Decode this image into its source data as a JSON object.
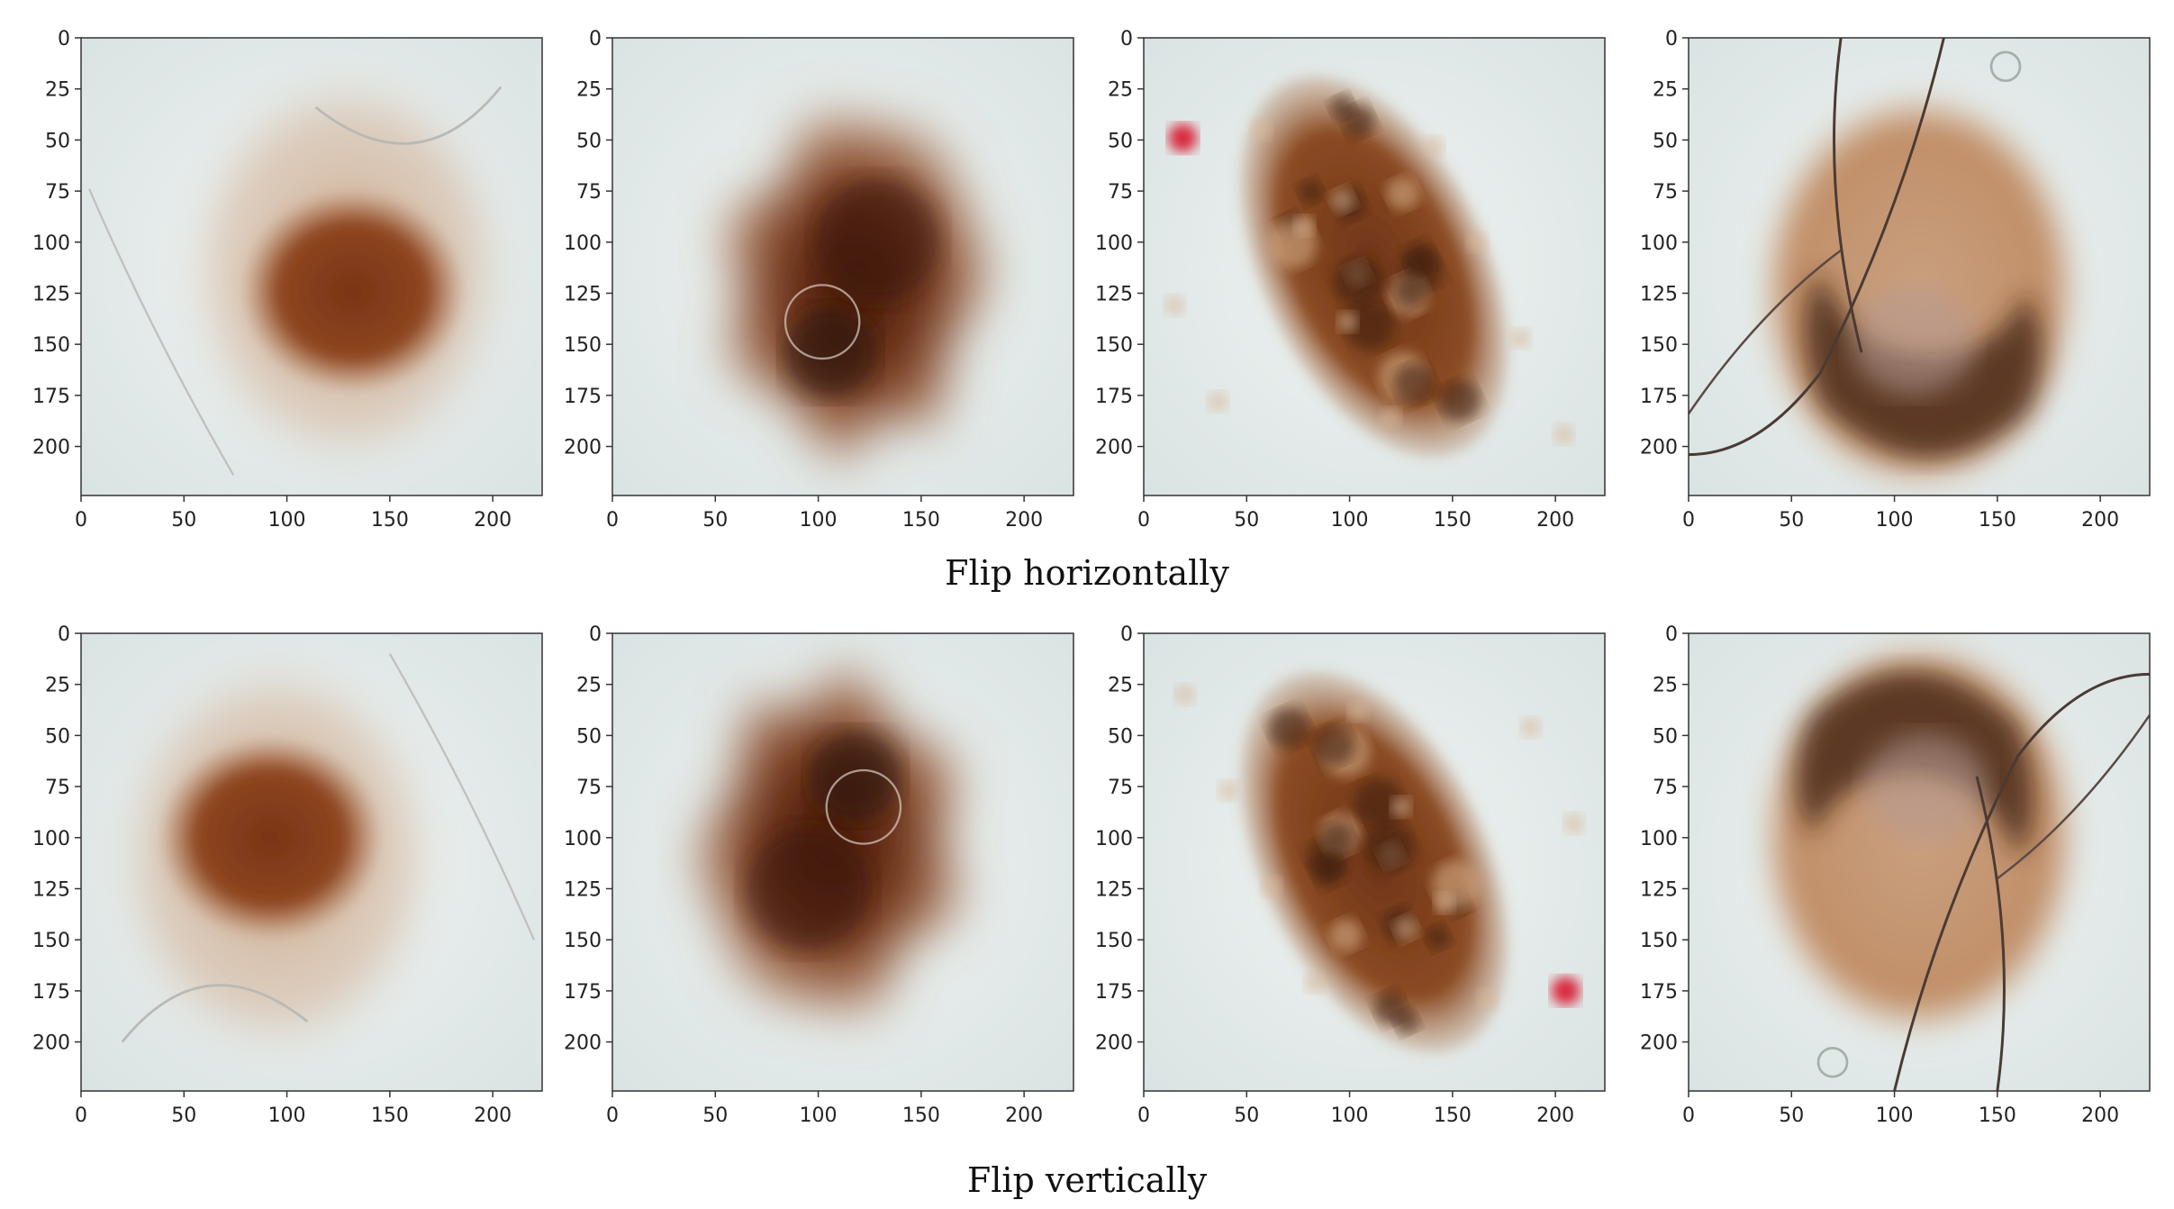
{
  "figure": {
    "rows": [
      {
        "caption": "Flip horizontally",
        "panels": [
          {
            "lesion": "pale-ring",
            "flip": "horizontal"
          },
          {
            "lesion": "dark-star",
            "flip": "horizontal"
          },
          {
            "lesion": "mottled-oval",
            "flip": "horizontal"
          },
          {
            "lesion": "hairy-ring",
            "flip": "horizontal"
          }
        ]
      },
      {
        "caption": "Flip vertically",
        "panels": [
          {
            "lesion": "pale-ring",
            "flip": "vertical"
          },
          {
            "lesion": "dark-star",
            "flip": "vertical"
          },
          {
            "lesion": "mottled-oval",
            "flip": "vertical"
          },
          {
            "lesion": "hairy-ring",
            "flip": "vertical"
          }
        ]
      }
    ],
    "axes": {
      "x_ticks": [
        "0",
        "50",
        "100",
        "150",
        "200"
      ],
      "y_ticks": [
        "0",
        "25",
        "50",
        "75",
        "100",
        "125",
        "150",
        "175",
        "200"
      ],
      "extent": [
        0,
        224
      ]
    },
    "colors": {
      "skin": "#e7eeec",
      "lesion_light": "#c49a7a",
      "lesion_mid": "#8a4520",
      "lesion_dark": "#3a1a10",
      "hair": "#4a3a33"
    }
  }
}
